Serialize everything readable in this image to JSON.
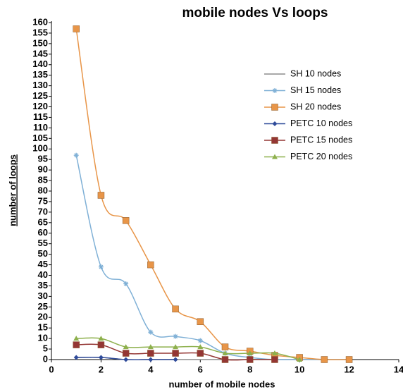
{
  "chart_data": {
    "type": "line",
    "title": "mobile nodes Vs loops",
    "xlabel": "number of mobile nodes",
    "ylabel": "number of loops",
    "x": [
      1,
      2,
      3,
      4,
      5,
      6,
      7,
      8,
      9,
      10,
      11,
      12
    ],
    "series": [
      {
        "name": "SH 10 nodes",
        "color": "#8c8c8c",
        "marker": "none",
        "values": [
          1,
          1,
          0,
          0,
          0,
          0,
          0,
          0,
          0,
          0,
          0,
          0
        ]
      },
      {
        "name": "SH 15 nodes",
        "color": "#7fb0d6",
        "marker": "asterisk",
        "values": [
          97,
          44,
          36,
          13,
          11,
          9,
          3,
          1,
          0,
          0,
          0,
          0
        ]
      },
      {
        "name": "SH 20  nodes",
        "color": "#e89548",
        "marker": "square",
        "values": [
          157,
          78,
          66,
          45,
          24,
          18,
          6,
          4,
          2,
          1,
          0,
          0
        ]
      },
      {
        "name": "PETC 10 nodes",
        "color": "#2f4b9a",
        "marker": "diamond",
        "values": [
          1,
          1,
          0,
          0,
          0,
          null,
          null,
          null,
          null,
          null,
          null,
          null
        ]
      },
      {
        "name": "PETC 15 nodes",
        "color": "#943634",
        "marker": "square",
        "values": [
          7,
          7,
          3,
          3,
          3,
          3,
          0,
          0,
          0,
          null,
          null,
          null
        ]
      },
      {
        "name": "PETC 20 nodes",
        "color": "#8db04c",
        "marker": "triangle",
        "values": [
          10,
          10,
          6,
          6,
          6,
          6,
          3,
          3,
          3,
          0,
          null,
          null
        ]
      }
    ],
    "xlim": [
      0,
      14
    ],
    "xticks": [
      0,
      2,
      4,
      6,
      8,
      10,
      12,
      14
    ],
    "ylim": [
      0,
      160
    ],
    "yticks": [
      0,
      5,
      10,
      15,
      20,
      25,
      30,
      35,
      40,
      45,
      50,
      55,
      60,
      65,
      70,
      75,
      80,
      85,
      90,
      95,
      100,
      105,
      110,
      115,
      120,
      125,
      130,
      135,
      140,
      145,
      150,
      155,
      160
    ],
    "grid": false,
    "legend": "upper right"
  }
}
